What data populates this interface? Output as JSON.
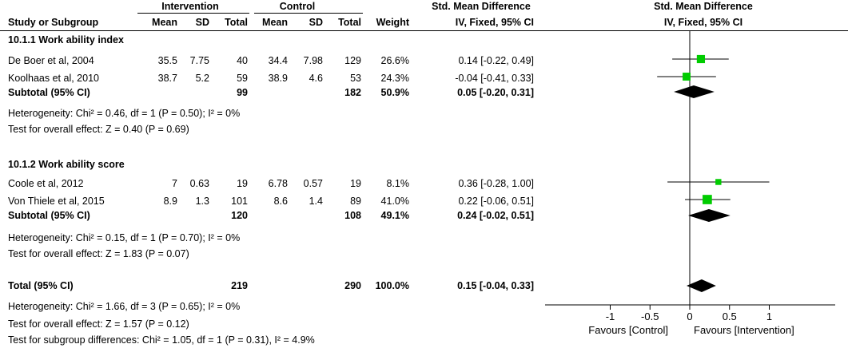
{
  "header": {
    "group_intervention": "Intervention",
    "group_control": "Control",
    "smd_title_left": "Std. Mean Difference",
    "smd_title_right": "Std. Mean Difference",
    "col_study": "Study or Subgroup",
    "col_mean_i": "Mean",
    "col_sd_i": "SD",
    "col_total_i": "Total",
    "col_mean_c": "Mean",
    "col_sd_c": "SD",
    "col_total_c": "Total",
    "col_weight": "Weight",
    "col_ci_left": "IV, Fixed, 95% CI",
    "col_ci_right": "IV, Fixed, 95% CI"
  },
  "subgroup1": {
    "title": "10.1.1 Work ability index",
    "studies": [
      {
        "name": "De Boer et al, 2004",
        "mean_i": "35.5",
        "sd_i": "7.75",
        "total_i": "40",
        "mean_c": "34.4",
        "sd_c": "7.98",
        "total_c": "129",
        "weight": "26.6%",
        "ci": "0.14 [-0.22, 0.49]"
      },
      {
        "name": "Koolhaas et al, 2010",
        "mean_i": "38.7",
        "sd_i": "5.2",
        "total_i": "59",
        "mean_c": "38.9",
        "sd_c": "4.6",
        "total_c": "53",
        "weight": "24.3%",
        "ci": "-0.04 [-0.41, 0.33]"
      }
    ],
    "subtotal": {
      "label": "Subtotal (95% CI)",
      "total_i": "99",
      "total_c": "182",
      "weight": "50.9%",
      "ci": "0.05 [-0.20, 0.31]"
    },
    "heterogeneity": "Heterogeneity: Chi² = 0.46, df = 1 (P = 0.50); I² = 0%",
    "overall": "Test for overall effect: Z = 0.40 (P = 0.69)"
  },
  "subgroup2": {
    "title": "10.1.2 Work ability score",
    "studies": [
      {
        "name": "Coole et al, 2012",
        "mean_i": "7",
        "sd_i": "0.63",
        "total_i": "19",
        "mean_c": "6.78",
        "sd_c": "0.57",
        "total_c": "19",
        "weight": "8.1%",
        "ci": "0.36 [-0.28, 1.00]"
      },
      {
        "name": "Von Thiele et al, 2015",
        "mean_i": "8.9",
        "sd_i": "1.3",
        "total_i": "101",
        "mean_c": "8.6",
        "sd_c": "1.4",
        "total_c": "89",
        "weight": "41.0%",
        "ci": "0.22 [-0.06, 0.51]"
      }
    ],
    "subtotal": {
      "label": "Subtotal (95% CI)",
      "total_i": "120",
      "total_c": "108",
      "weight": "49.1%",
      "ci": "0.24 [-0.02, 0.51]"
    },
    "heterogeneity": "Heterogeneity: Chi² = 0.15, df = 1 (P = 0.70); I² = 0%",
    "overall": "Test for overall effect: Z = 1.83 (P = 0.07)"
  },
  "total": {
    "label": "Total (95% CI)",
    "total_i": "219",
    "total_c": "290",
    "weight": "100.0%",
    "ci": "0.15 [-0.04, 0.33]",
    "heterogeneity": "Heterogeneity: Chi² = 1.66, df = 3 (P = 0.65); I² = 0%",
    "overall": "Test for overall effect: Z = 1.57 (P = 0.12)",
    "subgroup_diff": "Test for subgroup differences: Chi² = 1.05, df = 1 (P = 0.31), I² = 4.9%"
  },
  "colors": {
    "study_marker": "#00cc00",
    "diamond": "#000000",
    "line": "#000000"
  },
  "chart_data": {
    "type": "forest",
    "title": "Std. Mean Difference IV, Fixed, 95% CI",
    "xlim": [
      -1,
      1
    ],
    "ticks": [
      {
        "value": -1,
        "label": "-1"
      },
      {
        "value": -0.5,
        "label": "-0.5"
      },
      {
        "value": 0,
        "label": "0"
      },
      {
        "value": 0.5,
        "label": "0.5"
      },
      {
        "value": 1,
        "label": "1"
      }
    ],
    "favours_left": "Favours [Control]",
    "favours_right": "Favours [Intervention]",
    "studies": [
      {
        "name": "De Boer et al, 2004",
        "est": 0.14,
        "lo": -0.22,
        "hi": 0.49,
        "weight": 26.6
      },
      {
        "name": "Koolhaas et al, 2010",
        "est": -0.04,
        "lo": -0.41,
        "hi": 0.33,
        "weight": 24.3
      },
      {
        "name": "Coole et al, 2012",
        "est": 0.36,
        "lo": -0.28,
        "hi": 1.0,
        "weight": 8.1
      },
      {
        "name": "Von Thiele et al, 2015",
        "est": 0.22,
        "lo": -0.06,
        "hi": 0.51,
        "weight": 41.0
      }
    ],
    "summaries": [
      {
        "name": "Subtotal 10.1.1",
        "est": 0.05,
        "lo": -0.2,
        "hi": 0.31
      },
      {
        "name": "Subtotal 10.1.2",
        "est": 0.24,
        "lo": -0.02,
        "hi": 0.51
      },
      {
        "name": "Total",
        "est": 0.15,
        "lo": -0.04,
        "hi": 0.33
      }
    ]
  }
}
